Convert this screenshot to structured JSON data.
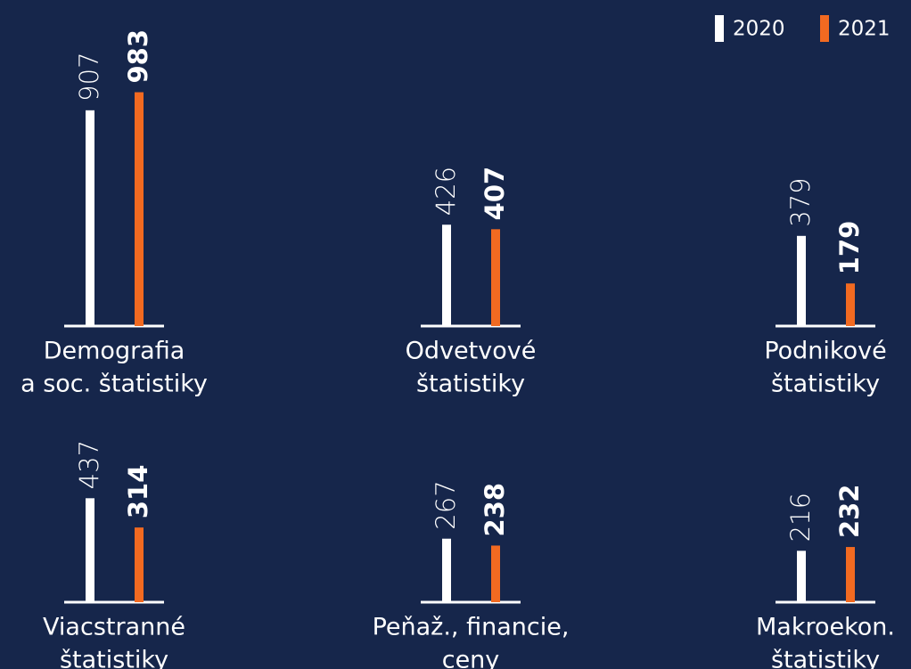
{
  "chart_data": [
    {
      "type": "bar",
      "title": [
        "Demografia",
        "a soc. štatistiky"
      ],
      "ylim": [
        0,
        1000
      ],
      "series": [
        {
          "name": "2020",
          "color": "#ffffff",
          "values": [
            907
          ]
        },
        {
          "name": "2021",
          "color": "#f26a21",
          "values": [
            983
          ]
        }
      ]
    },
    {
      "type": "bar",
      "title": [
        "Odvetvové",
        "štatistiky"
      ],
      "ylim": [
        0,
        1000
      ],
      "series": [
        {
          "name": "2020",
          "color": "#ffffff",
          "values": [
            426
          ]
        },
        {
          "name": "2021",
          "color": "#f26a21",
          "values": [
            407
          ]
        }
      ]
    },
    {
      "type": "bar",
      "title": [
        "Podnikové",
        "štatistiky"
      ],
      "ylim": [
        0,
        1000
      ],
      "series": [
        {
          "name": "2020",
          "color": "#ffffff",
          "values": [
            379
          ]
        },
        {
          "name": "2021",
          "color": "#f26a21",
          "values": [
            179
          ]
        }
      ]
    },
    {
      "type": "bar",
      "title": [
        "Viacstranné",
        "štatistiky"
      ],
      "ylim": [
        0,
        1000
      ],
      "series": [
        {
          "name": "2020",
          "color": "#ffffff",
          "values": [
            437
          ]
        },
        {
          "name": "2021",
          "color": "#f26a21",
          "values": [
            314
          ]
        }
      ]
    },
    {
      "type": "bar",
      "title": [
        "Peňaž., financie,",
        "ceny"
      ],
      "ylim": [
        0,
        1000
      ],
      "series": [
        {
          "name": "2020",
          "color": "#ffffff",
          "values": [
            267
          ]
        },
        {
          "name": "2021",
          "color": "#f26a21",
          "values": [
            238
          ]
        }
      ]
    },
    {
      "type": "bar",
      "title": [
        "Makroekon.",
        "štatistiky"
      ],
      "ylim": [
        0,
        1000
      ],
      "series": [
        {
          "name": "2020",
          "color": "#ffffff",
          "values": [
            216
          ]
        },
        {
          "name": "2021",
          "color": "#f26a21",
          "values": [
            232
          ]
        }
      ]
    }
  ]
}
